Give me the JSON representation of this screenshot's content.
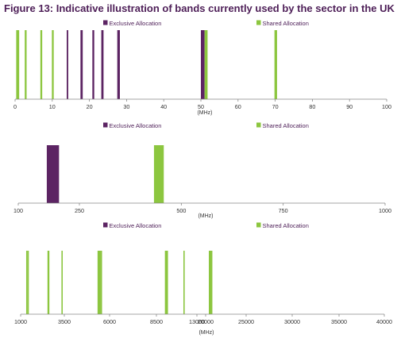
{
  "figure_title": "Figure 13: Indicative illustration of bands currently used by the sector in the UK",
  "colors": {
    "exclusive": "#5c2463",
    "shared": "#8cc63f",
    "title": "#4d1e57",
    "axis": "#888888"
  },
  "chart_data": [
    {
      "type": "bar",
      "title": "",
      "xlabel": "(MHz)",
      "xlim": [
        0,
        100
      ],
      "xticks": [
        0,
        10,
        20,
        30,
        40,
        50,
        60,
        70,
        80,
        90,
        100
      ],
      "legend": [
        "Exclusive Allocation",
        "Shared Allocation"
      ],
      "legend_placement": "top",
      "grid": false,
      "series": [
        {
          "name": "Exclusive Allocation",
          "bands": [
            [
              13.9,
              14.3
            ],
            [
              17.6,
              18.2
            ],
            [
              20.8,
              21.3
            ],
            [
              23.2,
              23.8
            ],
            [
              27.5,
              28.2
            ],
            [
              50.0,
              51.0
            ]
          ]
        },
        {
          "name": "Shared Allocation",
          "bands": [
            [
              0.3,
              1.1
            ],
            [
              2.6,
              3.1
            ],
            [
              6.8,
              7.3
            ],
            [
              9.9,
              10.4
            ],
            [
              51.0,
              51.8
            ],
            [
              69.8,
              70.5
            ]
          ]
        }
      ]
    },
    {
      "type": "bar",
      "title": "",
      "xlabel": "(MHz)",
      "xlim": [
        100,
        1000
      ],
      "xticks": [
        100,
        250,
        500,
        750,
        1000
      ],
      "legend": [
        "Exclusive Allocation",
        "Shared Allocation"
      ],
      "legend_placement": "top",
      "grid": false,
      "series": [
        {
          "name": "Exclusive Allocation",
          "bands": [
            [
              170,
              200
            ]
          ]
        },
        {
          "name": "Shared Allocation",
          "bands": [
            [
              433,
              457
            ]
          ]
        }
      ]
    },
    {
      "type": "bar",
      "title": "",
      "xlabel": "(MHz)",
      "xlim": [
        1000,
        40000
      ],
      "xticks": [
        1000,
        3500,
        6000,
        8500,
        13000,
        20000,
        25000,
        30000,
        35000,
        40000
      ],
      "tick_labels": [
        "1000",
        "3500",
        "6000",
        "8500",
        "13000",
        "20000",
        "25000",
        "30000",
        "35000",
        "40000"
      ],
      "legend": [
        "Exclusive Allocation",
        "Shared Allocation"
      ],
      "legend_placement": "top",
      "grid": false,
      "series": [
        {
          "name": "Exclusive Allocation",
          "bands": []
        },
        {
          "name": "Shared Allocation",
          "bands": [
            [
              1240,
              1300
            ],
            [
              1300,
              1350
            ],
            [
              2300,
              2450
            ],
            [
              3400,
              3500
            ],
            [
              5650,
              5850
            ],
            [
              5850,
              5925
            ],
            [
              10000,
              10500
            ],
            [
              13000,
              13200
            ],
            [
              24000,
              24250
            ]
          ]
        }
      ]
    }
  ]
}
